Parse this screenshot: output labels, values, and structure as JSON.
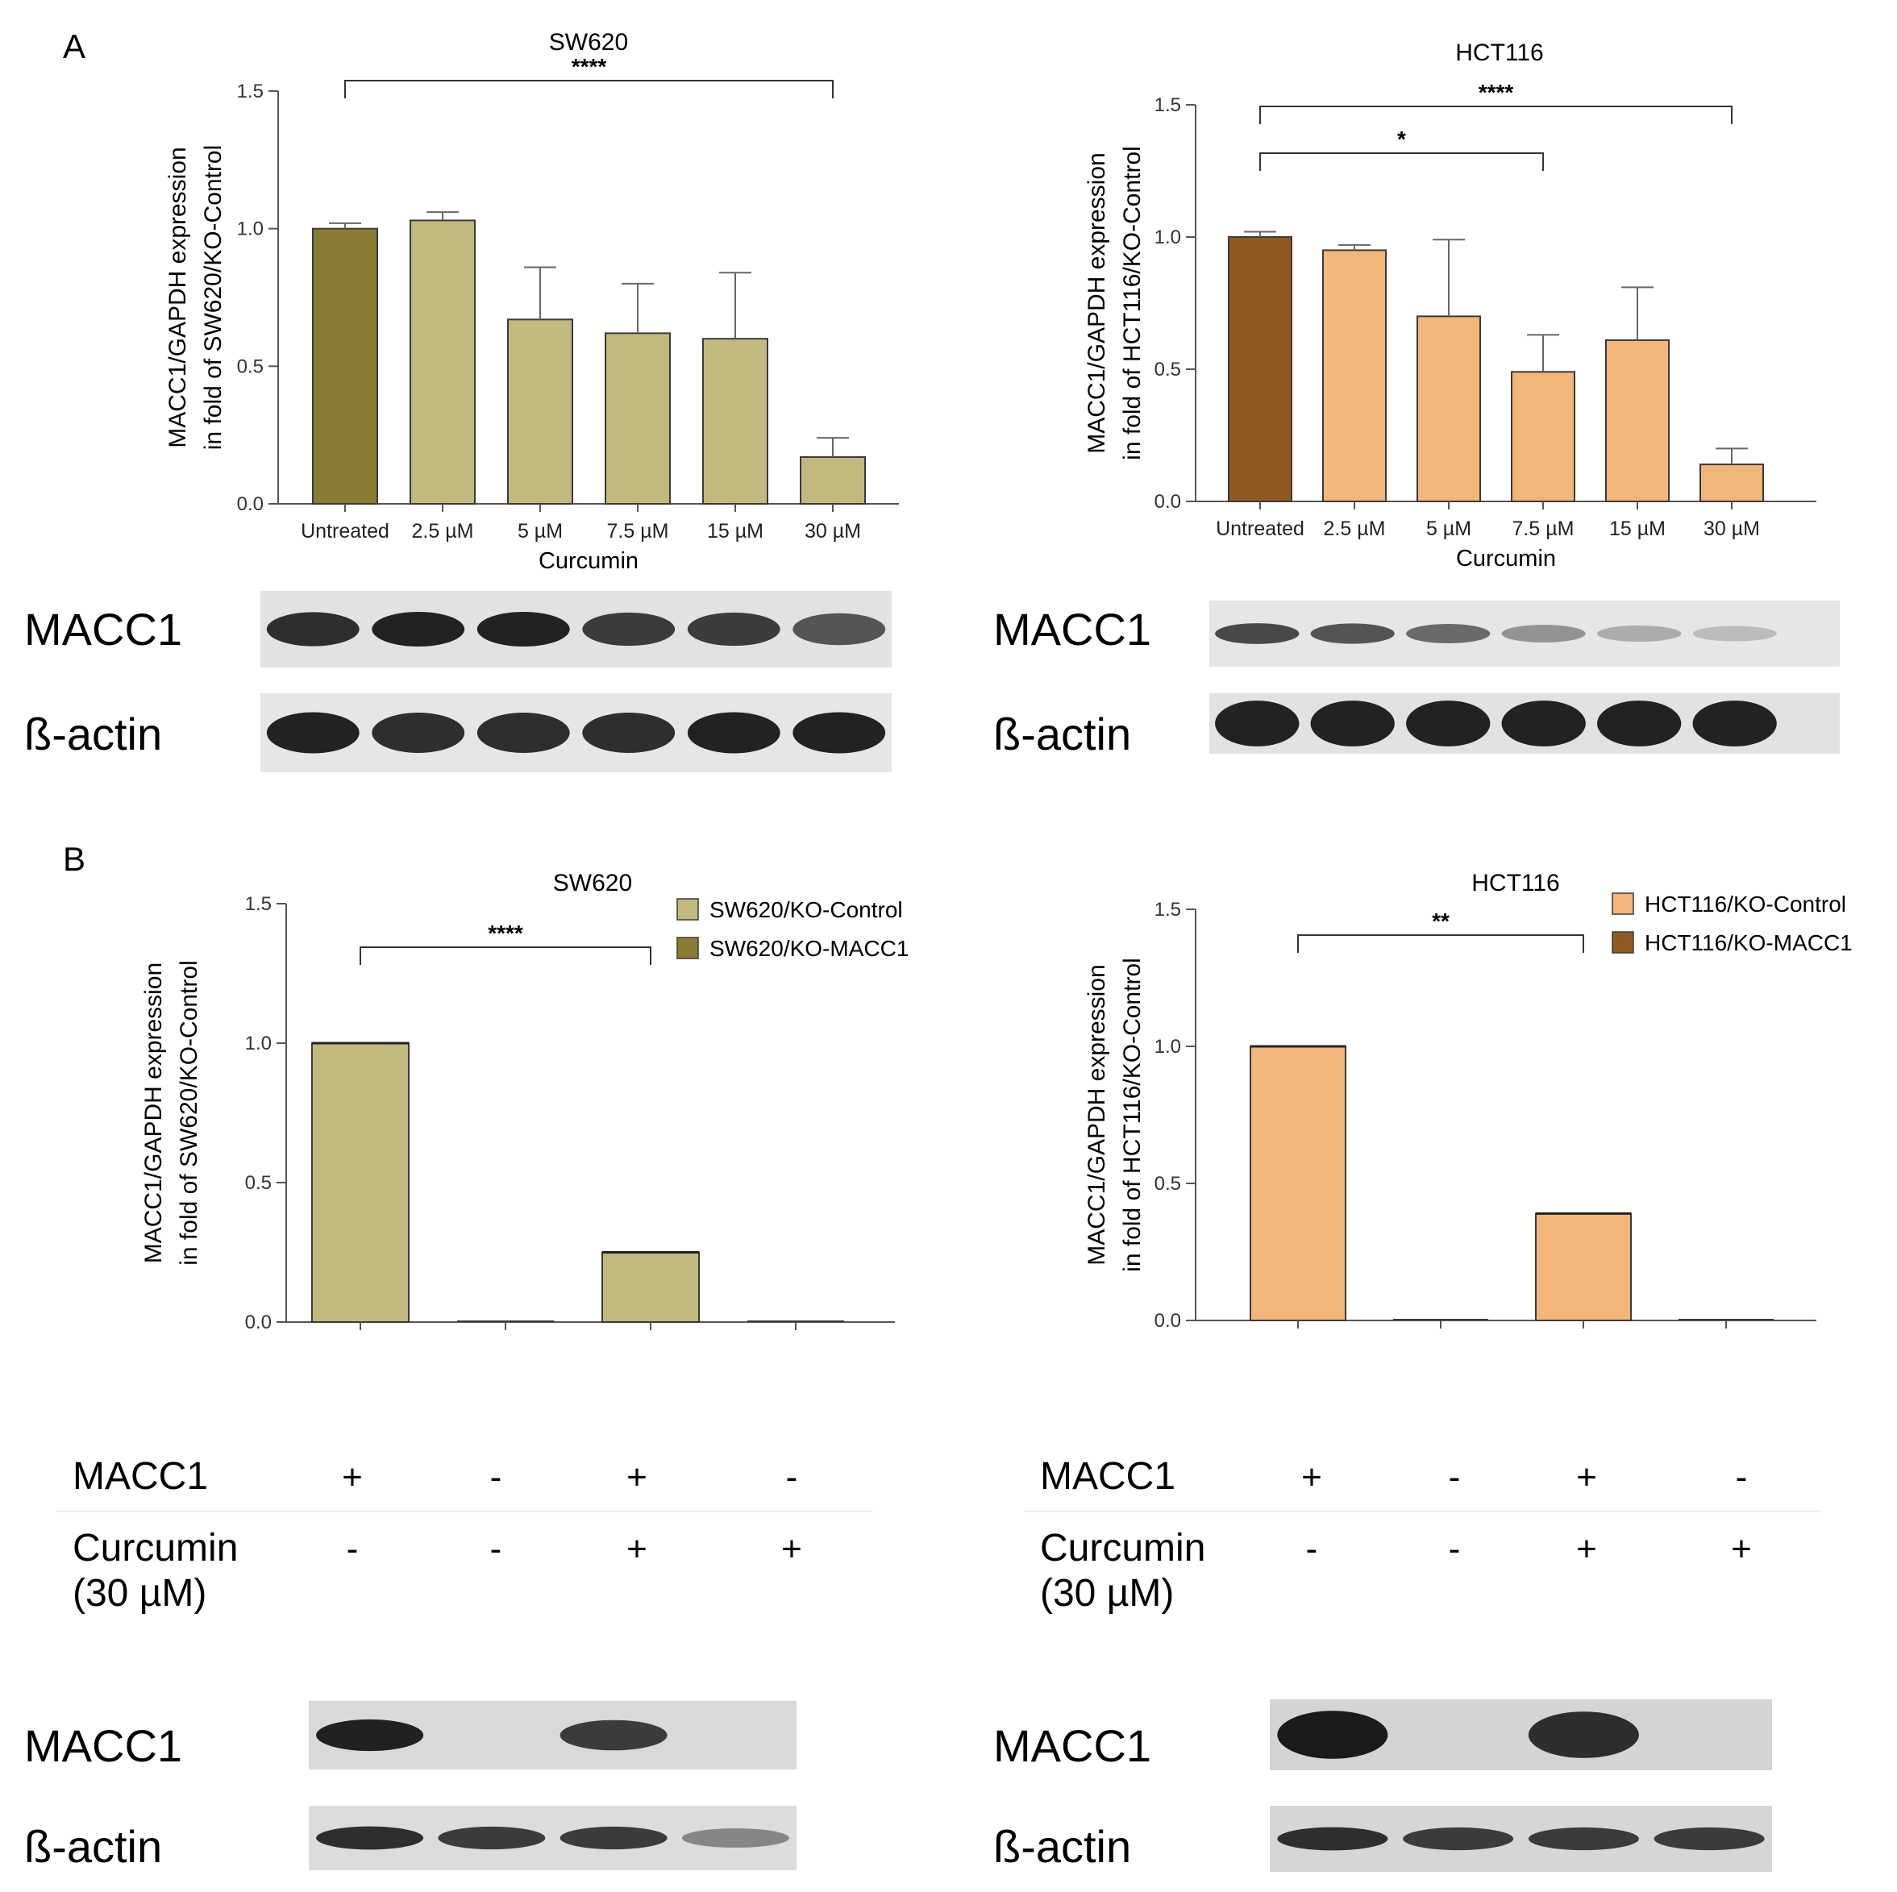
{
  "panel_labels": [
    "A",
    "B"
  ],
  "colors": {
    "olive_dark": "#8a7d33",
    "olive_light": "#c2b97e",
    "brown_dark": "#8f5a20",
    "orange_light": "#f2b57a"
  },
  "chart_data": [
    {
      "type": "bar",
      "title": "SW620",
      "categories": [
        "Untreated",
        "2.5 µM",
        "5 µM",
        "7.5 µM",
        "15 µM",
        "30 µM"
      ],
      "values": [
        1.0,
        1.03,
        0.67,
        0.62,
        0.6,
        0.17
      ],
      "errors": [
        0.02,
        0.03,
        0.19,
        0.18,
        0.24,
        0.07
      ],
      "xlabel": "Curcumin",
      "ylabel_lines": [
        "MACC1/GAPDH expression",
        "in fold of SW620/KO-Control"
      ],
      "ylim": [
        0,
        1.5
      ],
      "yticks": [
        "0.0",
        "0.5",
        "1.0",
        "1.5"
      ],
      "significance": [
        {
          "from": 0,
          "to": 5,
          "label": "****"
        }
      ]
    },
    {
      "type": "bar",
      "title": "HCT116",
      "categories": [
        "Untreated",
        "2.5 µM",
        "5 µM",
        "7.5 µM",
        "15 µM",
        "30 µM"
      ],
      "values": [
        1.0,
        0.95,
        0.7,
        0.49,
        0.61,
        0.14
      ],
      "errors": [
        0.02,
        0.02,
        0.29,
        0.14,
        0.2,
        0.06
      ],
      "xlabel": "Curcumin",
      "ylabel_lines": [
        "MACC1/GAPDH expression",
        "in fold of HCT116/KO-Control"
      ],
      "ylim": [
        0,
        1.5
      ],
      "yticks": [
        "0.0",
        "0.5",
        "1.0",
        "1.5"
      ],
      "significance": [
        {
          "from": 0,
          "to": 5,
          "label": "****"
        },
        {
          "from": 0,
          "to": 3,
          "label": "*"
        }
      ]
    },
    {
      "type": "bar",
      "title": "SW620",
      "categories": [
        "",
        "",
        "",
        ""
      ],
      "values": [
        1.0,
        0.0,
        0.25,
        0.0
      ],
      "series_index": [
        0,
        1,
        0,
        1
      ],
      "series": [
        {
          "name": "SW620/KO-Control"
        },
        {
          "name": "SW620/KO-MACC1"
        }
      ],
      "ylabel_lines": [
        "MACC1/GAPDH expression",
        "in fold of SW620/KO-Control"
      ],
      "ylim": [
        0,
        1.5
      ],
      "yticks": [
        "0.0",
        "0.5",
        "1.0",
        "1.5"
      ],
      "significance": [
        {
          "from": 0,
          "to": 2,
          "label": "****"
        }
      ]
    },
    {
      "type": "bar",
      "title": "HCT116",
      "categories": [
        "",
        "",
        "",
        ""
      ],
      "values": [
        1.0,
        0.0,
        0.39,
        0.0
      ],
      "series_index": [
        0,
        1,
        0,
        1
      ],
      "series": [
        {
          "name": "HCT116/KO-Control"
        },
        {
          "name": "HCT116/KO-MACC1"
        }
      ],
      "ylabel_lines": [
        "MACC1/GAPDH expression",
        "in fold of HCT116/KO-Control"
      ],
      "ylim": [
        0,
        1.5
      ],
      "yticks": [
        "0.0",
        "0.5",
        "1.0",
        "1.5"
      ],
      "significance": [
        {
          "from": 0,
          "to": 2,
          "label": "**"
        }
      ]
    }
  ],
  "blots": {
    "top_labels": [
      "MACC1",
      "ß-actin"
    ],
    "bottom_labels": [
      "MACC1",
      "ß-actin"
    ],
    "sw620_top_macc1": [
      0.9,
      0.95,
      0.95,
      0.85,
      0.85,
      0.75
    ],
    "sw620_top_actin": [
      0.95,
      0.9,
      0.9,
      0.9,
      0.95,
      0.95
    ],
    "hct116_top_macc1": [
      0.8,
      0.75,
      0.65,
      0.45,
      0.3,
      0.2
    ],
    "hct116_top_actin": [
      0.95,
      0.95,
      0.95,
      0.95,
      0.95,
      0.95
    ],
    "sw620_bottom_macc1": [
      0.95,
      0.0,
      0.85,
      0.0
    ],
    "sw620_bottom_actin": [
      0.9,
      0.85,
      0.85,
      0.5
    ],
    "hct116_bottom_macc1": [
      0.98,
      0.0,
      0.9,
      0.0
    ],
    "hct116_bottom_actin": [
      0.9,
      0.85,
      0.85,
      0.85
    ]
  },
  "treatment_table": {
    "row1_label": "MACC1",
    "row2_label_line1": "Curcumin",
    "row2_label_line2": "(30 µM)",
    "row1_values": [
      "+",
      "-",
      "+",
      "-"
    ],
    "row2_values": [
      "-",
      "-",
      "+",
      "+"
    ]
  }
}
